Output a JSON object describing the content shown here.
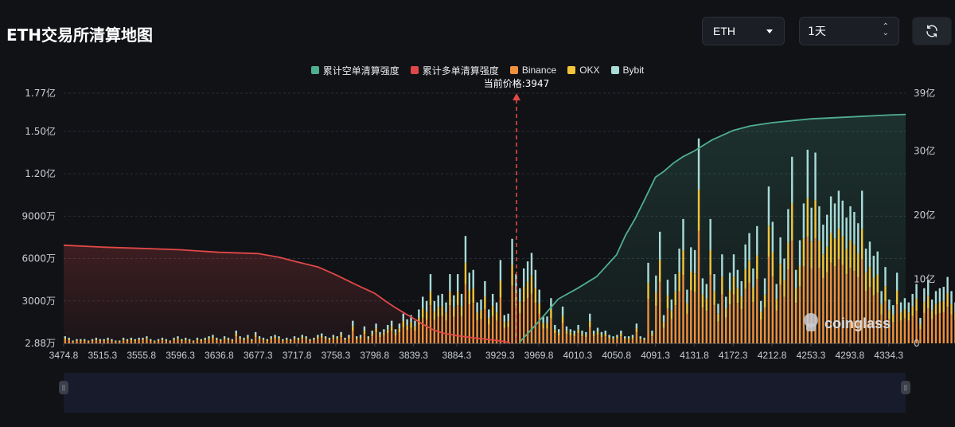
{
  "header": {
    "title": "ETH交易所清算地图",
    "coin_select": "ETH",
    "range_select": "1天",
    "refresh_icon": "refresh-icon"
  },
  "legend": [
    {
      "label": "累计空单清算强度",
      "color": "#4fae8e"
    },
    {
      "label": "累计多单清算强度",
      "color": "#e04848"
    },
    {
      "label": "Binance",
      "color": "#f0903a"
    },
    {
      "label": "OKX",
      "color": "#f4c53a"
    },
    {
      "label": "Bybit",
      "color": "#a8dcd8"
    }
  ],
  "current_price_label": "当前价格:3947",
  "watermark": "coinglass",
  "chart_data": {
    "type": "bar",
    "current_price": 3947,
    "x_tick_labels": [
      "3474.8",
      "3515.3",
      "3555.8",
      "3596.3",
      "3636.8",
      "3677.3",
      "3717.8",
      "3758.3",
      "3798.8",
      "3839.3",
      "3884.3",
      "3929.3",
      "3969.8",
      "4010.3",
      "4050.8",
      "4091.3",
      "4131.8",
      "4172.3",
      "4212.8",
      "4253.3",
      "4293.8",
      "4334.3"
    ],
    "left_axis_labels": [
      "2.88万",
      "3000万",
      "6000万",
      "9000万",
      "1.20亿",
      "1.50亿",
      "1.77亿"
    ],
    "left_axis_values": [
      28800,
      30000000,
      60000000,
      90000000,
      120000000,
      150000000,
      177000000
    ],
    "right_axis_labels": [
      "0",
      "10亿",
      "20亿",
      "30亿",
      "39亿"
    ],
    "right_axis_values": [
      0,
      1000000000,
      2000000000,
      3000000000,
      3900000000
    ],
    "ylim_left": [
      0,
      177000000
    ],
    "ylim_right": [
      0,
      3900000000
    ],
    "x_range": [
      3474.8,
      4352.0
    ],
    "bar_step": 4.05,
    "bar_totals_million": [
      5,
      4,
      2,
      3,
      3,
      3,
      2,
      3,
      4,
      3,
      3,
      4,
      3,
      2,
      2,
      4,
      3,
      4,
      3,
      4,
      4,
      5,
      3,
      2,
      3,
      4,
      3,
      2,
      4,
      5,
      3,
      4,
      3,
      2,
      4,
      3,
      4,
      5,
      6,
      4,
      3,
      5,
      4,
      3,
      9,
      5,
      4,
      6,
      3,
      8,
      5,
      4,
      3,
      5,
      6,
      5,
      3,
      4,
      3,
      5,
      4,
      6,
      5,
      3,
      4,
      6,
      7,
      5,
      4,
      6,
      5,
      8,
      4,
      6,
      16,
      5,
      6,
      12,
      5,
      9,
      14,
      8,
      10,
      13,
      16,
      10,
      14,
      21,
      17,
      20,
      16,
      24,
      33,
      30,
      49,
      30,
      34,
      35,
      29,
      49,
      34,
      49,
      35,
      76,
      50,
      52,
      29,
      31,
      44,
      24,
      35,
      29,
      59,
      20,
      21,
      74,
      49,
      39,
      53,
      58,
      64,
      52,
      38,
      19,
      19,
      32,
      13,
      10,
      26,
      12,
      10,
      9,
      13,
      9,
      8,
      21,
      9,
      11,
      8,
      9,
      6,
      5,
      6,
      9,
      5,
      5,
      6,
      14,
      5,
      4,
      57,
      9,
      48,
      79,
      20,
      45,
      31,
      49,
      67,
      88,
      38,
      68,
      66,
      145,
      46,
      42,
      88,
      49,
      28,
      63,
      33,
      50,
      63,
      52,
      44,
      70,
      78,
      53,
      83,
      30,
      46,
      111,
      86,
      42,
      75,
      60,
      95,
      132,
      52,
      73,
      99,
      137,
      96,
      135,
      97,
      84,
      91,
      104,
      99,
      108,
      101,
      89,
      97,
      93,
      85,
      108,
      67,
      72,
      62,
      65,
      37,
      54,
      31,
      27,
      50,
      29,
      32,
      29,
      35,
      42,
      18,
      39,
      45,
      31,
      37,
      39,
      40,
      47,
      37,
      29,
      31,
      20,
      18,
      22,
      23,
      13,
      17,
      12,
      10,
      11,
      9,
      8,
      8,
      6,
      13,
      7,
      5,
      5,
      5,
      6,
      6,
      5,
      5,
      3,
      5,
      4,
      3,
      4,
      4,
      4,
      3,
      4,
      3,
      4,
      3,
      5,
      4,
      3,
      4,
      3,
      4,
      3,
      2
    ],
    "bar_ratio_binance": 0.55,
    "bar_ratio_okx": 0.2,
    "bar_ratio_bybit": 0.25,
    "series": [
      {
        "name": "累计多单清算强度",
        "axis": "right",
        "unit": "亿",
        "x": [
          3474.8,
          3515.3,
          3555.8,
          3596.3,
          3636.8,
          3677.3,
          3700,
          3717.8,
          3740,
          3758.3,
          3780,
          3798.8,
          3810,
          3820,
          3830,
          3839.3,
          3850,
          3860,
          3870,
          3884.3,
          3900,
          3929.3,
          3940
        ],
        "y": [
          15.3,
          15.0,
          14.8,
          14.6,
          14.2,
          14.0,
          13.4,
          12.7,
          11.9,
          10.7,
          9.1,
          7.8,
          6.6,
          5.6,
          4.7,
          3.9,
          2.9,
          2.1,
          1.6,
          1.2,
          0.9,
          0.4,
          0.1
        ]
      },
      {
        "name": "累计空单清算强度",
        "axis": "right",
        "unit": "亿",
        "x": [
          3950,
          3969.8,
          3990,
          4010.3,
          4030,
          4050.8,
          4060,
          4070,
          4080,
          4091.3,
          4100,
          4110,
          4120,
          4131.8,
          4150,
          4172.3,
          4190,
          4212.8,
          4253.3,
          4293.8,
          4334.3,
          4352
        ],
        "y": [
          0.2,
          3.4,
          6.9,
          8.6,
          10.4,
          13.8,
          16.8,
          19.4,
          22.4,
          25.9,
          26.8,
          28.1,
          29.1,
          30.0,
          31.7,
          33.2,
          33.9,
          34.4,
          35.0,
          35.3,
          35.6,
          35.7
        ]
      }
    ]
  }
}
